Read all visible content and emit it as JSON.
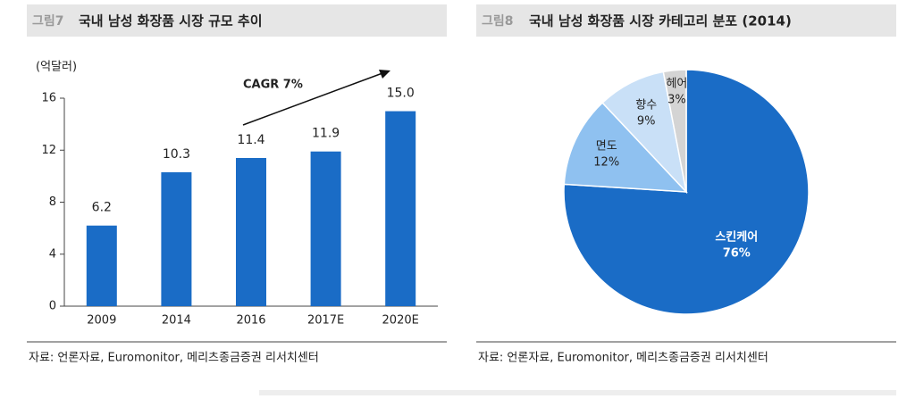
{
  "chart_data": [
    {
      "type": "bar",
      "figure_label": "그림7",
      "title": "국내 남성 화장품 시장 규모 추이",
      "unit": "(억달러)",
      "annotation": "CAGR 7%",
      "categories": [
        "2009",
        "2014",
        "2016",
        "2017E",
        "2020E"
      ],
      "values": [
        6.2,
        10.3,
        11.4,
        11.9,
        15.0
      ],
      "value_labels": [
        "6.2",
        "10.3",
        "11.4",
        "11.9",
        "15.0"
      ],
      "color": "#1a6cc6",
      "ylim": [
        0,
        16
      ],
      "yticks": [
        0,
        4,
        8,
        12,
        16
      ],
      "source": "자료: 언론자료, Euromonitor, 메리츠종금증권 리서치센터"
    },
    {
      "type": "pie",
      "figure_label": "그림8",
      "title": "국내 남성 화장품 시장 카테고리 분포 (2014)",
      "categories": [
        "스킨케어",
        "면도",
        "향수",
        "헤어"
      ],
      "values": [
        76,
        12,
        9,
        3
      ],
      "value_labels": [
        "76%",
        "12%",
        "9%",
        "3%"
      ],
      "colors": [
        "#1a6cc6",
        "#8fc1f0",
        "#c9e0f7",
        "#d4d4d4"
      ],
      "source": "자료: 언론자료, Euromonitor, 메리츠종금증권 리서치센터"
    }
  ]
}
